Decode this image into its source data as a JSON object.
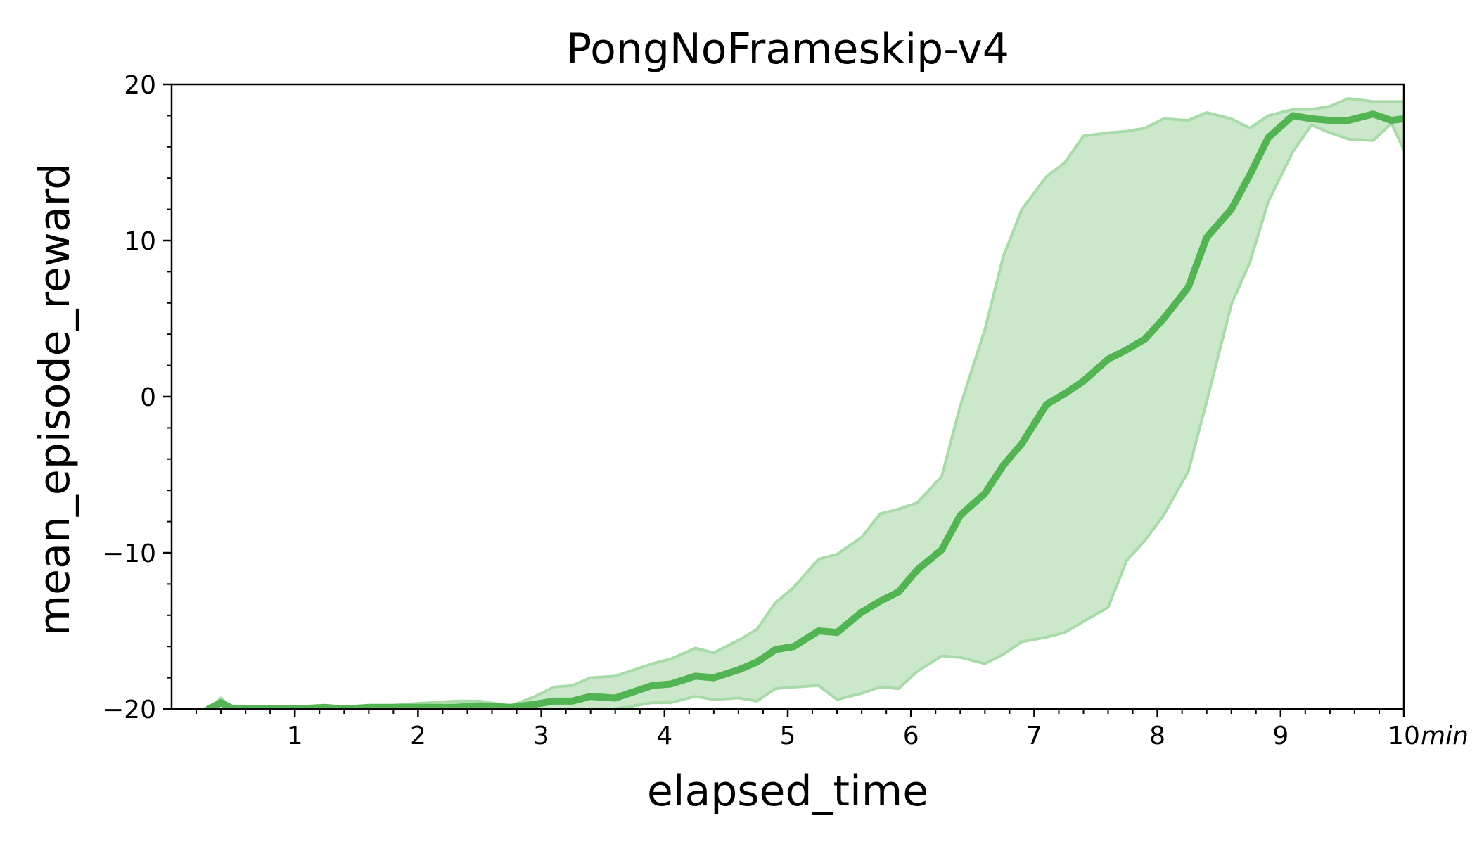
{
  "chart_data": {
    "type": "line",
    "title": "PongNoFrameskip-v4",
    "xlabel": "elapsed_time",
    "ylabel": "mean_episode_reward",
    "x_unit": "min",
    "xlim": [
      0,
      10
    ],
    "ylim": [
      -20,
      20
    ],
    "x_major_ticks": [
      1,
      2,
      3,
      4,
      5,
      6,
      7,
      8,
      9,
      10
    ],
    "x_tick_labels": [
      "1",
      "2",
      "3",
      "4",
      "5",
      "6",
      "7",
      "8",
      "9",
      "10"
    ],
    "y_major_ticks": [
      -20,
      -10,
      0,
      10,
      20
    ],
    "y_tick_labels": [
      "−20",
      "−10",
      "0",
      "10",
      "20"
    ],
    "grid": false,
    "legend": "none",
    "colors": {
      "line": "#53b453",
      "band_fill": "#cbe8cb",
      "band_edge": "#a9dba9"
    },
    "series": [
      {
        "x": [
          0.3,
          0.4,
          0.5,
          0.7,
          1.0,
          1.25,
          1.4,
          1.6,
          1.9,
          2.3,
          2.5,
          2.75,
          2.95,
          3.1,
          3.25,
          3.4,
          3.6,
          3.9,
          4.05,
          4.25,
          4.4,
          4.6,
          4.75,
          4.9,
          5.05,
          5.25,
          5.4,
          5.6,
          5.75,
          5.9,
          6.05,
          6.25,
          6.4,
          6.6,
          6.75,
          6.9,
          7.1,
          7.25,
          7.4,
          7.6,
          7.75,
          7.9,
          8.05,
          8.25,
          8.4,
          8.6,
          8.75,
          8.9,
          9.1,
          9.25,
          9.4,
          9.55,
          9.75,
          9.9,
          10.0
        ],
        "y": [
          -20.0,
          -19.6,
          -20.0,
          -20.0,
          -20.0,
          -19.9,
          -20.0,
          -19.9,
          -19.9,
          -19.9,
          -19.8,
          -19.9,
          -19.7,
          -19.5,
          -19.5,
          -19.2,
          -19.3,
          -18.5,
          -18.4,
          -17.9,
          -18.0,
          -17.5,
          -17.0,
          -16.2,
          -16.0,
          -15.0,
          -15.1,
          -13.8,
          -13.1,
          -12.5,
          -11.1,
          -9.8,
          -7.6,
          -6.2,
          -4.4,
          -3.0,
          -0.5,
          0.2,
          1.0,
          2.4,
          3.0,
          3.7,
          5.0,
          7.0,
          10.2,
          12.0,
          14.2,
          16.6,
          18.0,
          17.8,
          17.7,
          17.7,
          18.1,
          17.7,
          17.8
        ],
        "upper": [
          -20.0,
          -19.3,
          -20.0,
          -20.0,
          -20.0,
          -19.9,
          -20.0,
          -19.9,
          -19.7,
          -19.5,
          -19.5,
          -19.8,
          -19.2,
          -18.6,
          -18.5,
          -18.0,
          -17.9,
          -17.1,
          -16.8,
          -16.1,
          -16.4,
          -15.6,
          -14.9,
          -13.2,
          -12.2,
          -10.4,
          -10.1,
          -9.0,
          -7.5,
          -7.2,
          -6.8,
          -5.1,
          -0.6,
          4.3,
          9.0,
          12.0,
          14.1,
          15.0,
          16.7,
          16.9,
          17.0,
          17.2,
          17.8,
          17.7,
          18.2,
          17.8,
          17.2,
          18.0,
          18.4,
          18.4,
          18.6,
          19.1,
          18.9,
          18.9,
          18.9
        ],
        "lower": [
          -20.0,
          -20.0,
          -20.0,
          -20.0,
          -20.0,
          -20.0,
          -20.0,
          -20.0,
          -20.0,
          -20.0,
          -20.0,
          -20.0,
          -20.0,
          -20.0,
          -20.0,
          -20.0,
          -20.0,
          -19.6,
          -19.6,
          -19.2,
          -19.4,
          -19.3,
          -19.5,
          -18.7,
          -18.6,
          -18.5,
          -19.4,
          -19.0,
          -18.6,
          -18.7,
          -17.6,
          -16.6,
          -16.7,
          -17.1,
          -16.5,
          -15.7,
          -15.4,
          -15.1,
          -14.4,
          -13.5,
          -10.5,
          -9.2,
          -7.6,
          -4.8,
          -0.3,
          5.9,
          8.6,
          12.5,
          15.7,
          17.4,
          16.9,
          16.5,
          16.4,
          17.5,
          15.8
        ]
      }
    ]
  }
}
